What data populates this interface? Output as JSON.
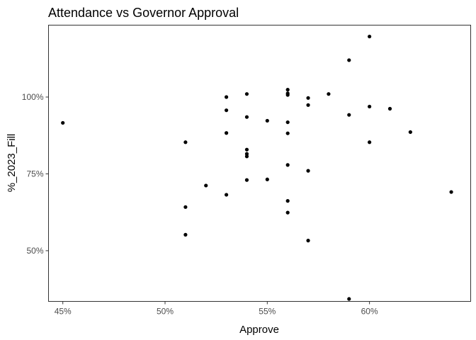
{
  "chart_data": {
    "type": "scatter",
    "title": "Attendance vs Governor Approval",
    "xlabel": "Approve",
    "ylabel": "%_2023_Fill",
    "xlim": [
      0.443,
      0.6495
    ],
    "ylim": [
      0.335,
      1.234
    ],
    "x_ticks": [
      0.45,
      0.5,
      0.55,
      0.6
    ],
    "x_tick_labels": [
      "45%",
      "50%",
      "55%",
      "60%"
    ],
    "y_ticks": [
      0.5,
      0.75,
      1.0
    ],
    "y_tick_labels": [
      "50%",
      "75%",
      "100%"
    ],
    "grid": false,
    "legend": "none",
    "point_color": "#000000",
    "points": [
      {
        "x": 0.45,
        "y": 0.916
      },
      {
        "x": 0.51,
        "y": 0.853
      },
      {
        "x": 0.51,
        "y": 0.642
      },
      {
        "x": 0.51,
        "y": 0.552
      },
      {
        "x": 0.52,
        "y": 0.712
      },
      {
        "x": 0.53,
        "y": 1.0
      },
      {
        "x": 0.53,
        "y": 0.957
      },
      {
        "x": 0.53,
        "y": 0.883
      },
      {
        "x": 0.53,
        "y": 0.682
      },
      {
        "x": 0.54,
        "y": 1.01
      },
      {
        "x": 0.54,
        "y": 0.935
      },
      {
        "x": 0.54,
        "y": 0.829
      },
      {
        "x": 0.54,
        "y": 0.815
      },
      {
        "x": 0.54,
        "y": 0.807
      },
      {
        "x": 0.54,
        "y": 0.73
      },
      {
        "x": 0.55,
        "y": 0.923
      },
      {
        "x": 0.55,
        "y": 0.732
      },
      {
        "x": 0.56,
        "y": 1.024
      },
      {
        "x": 0.56,
        "y": 1.012
      },
      {
        "x": 0.56,
        "y": 1.007
      },
      {
        "x": 0.56,
        "y": 0.918
      },
      {
        "x": 0.56,
        "y": 0.882
      },
      {
        "x": 0.56,
        "y": 0.779
      },
      {
        "x": 0.56,
        "y": 0.662
      },
      {
        "x": 0.56,
        "y": 0.624
      },
      {
        "x": 0.57,
        "y": 0.997
      },
      {
        "x": 0.57,
        "y": 0.974
      },
      {
        "x": 0.57,
        "y": 0.76
      },
      {
        "x": 0.57,
        "y": 0.533
      },
      {
        "x": 0.58,
        "y": 1.01
      },
      {
        "x": 0.59,
        "y": 1.12
      },
      {
        "x": 0.59,
        "y": 0.942
      },
      {
        "x": 0.59,
        "y": 0.343
      },
      {
        "x": 0.6,
        "y": 1.197
      },
      {
        "x": 0.6,
        "y": 0.969
      },
      {
        "x": 0.6,
        "y": 0.853
      },
      {
        "x": 0.61,
        "y": 0.962
      },
      {
        "x": 0.62,
        "y": 0.886
      },
      {
        "x": 0.64,
        "y": 0.691
      }
    ]
  }
}
